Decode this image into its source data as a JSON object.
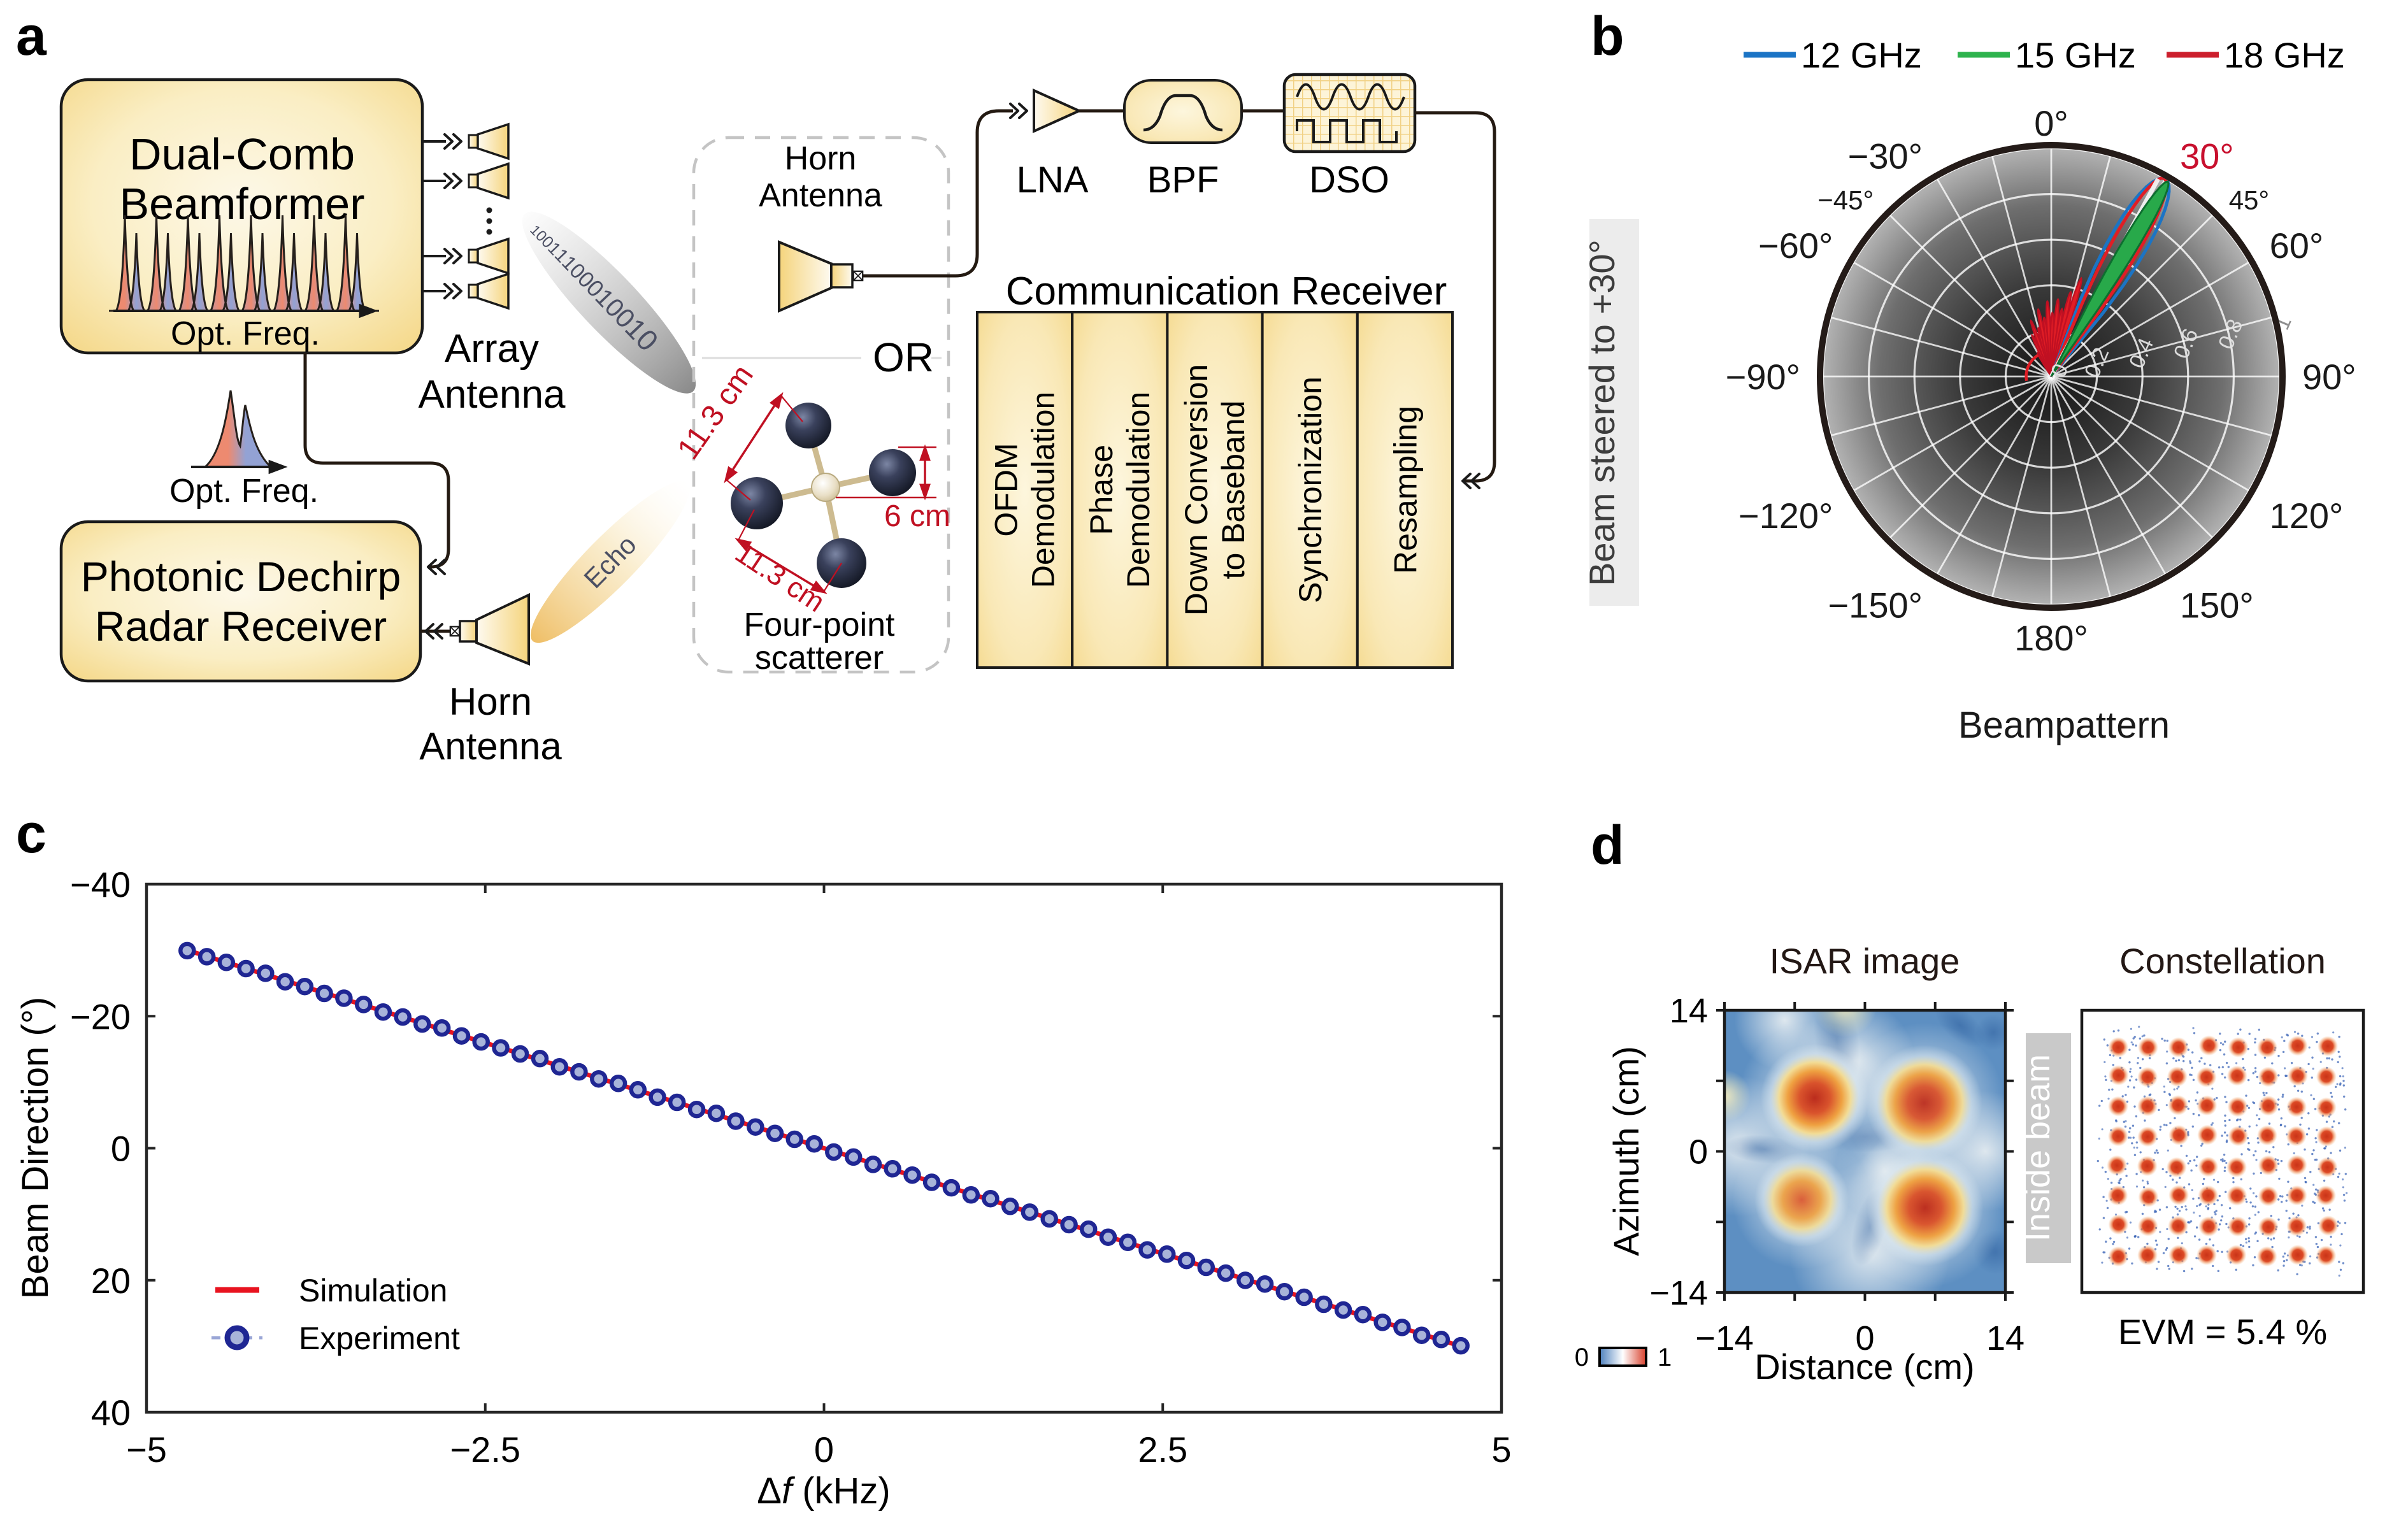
{
  "figure": {
    "panel_labels": {
      "a": "a",
      "b": "b",
      "c": "c",
      "d": "d"
    }
  },
  "panel_a": {
    "dual_comb_box": {
      "line1": "Dual-Comb",
      "line2": "Beamformer"
    },
    "comb_axis_label": "Opt. Freq.",
    "single_peak_axis_label": "Opt. Freq.",
    "photonic_box": {
      "line1": "Photonic Dechirp",
      "line2": "Radar Receiver"
    },
    "array_antenna": {
      "line1": "Array",
      "line2": "Antenna"
    },
    "horn_antenna_top": {
      "line1": "Horn",
      "line2": "Antenna"
    },
    "horn_antenna_bottom": {
      "line1": "Horn",
      "line2": "Antenna"
    },
    "bits": "10011100010010",
    "echo_label": "Echo",
    "or_label": "OR",
    "lna_label": "LNA",
    "bpf_label": "BPF",
    "dso_label": "DSO",
    "comm_title": "Communication Receiver",
    "comm_blocks": [
      {
        "lines": [
          "OFDM",
          "Demodulation"
        ]
      },
      {
        "lines": [
          "Phase",
          "Demodulation"
        ]
      },
      {
        "lines": [
          "Down Conversion",
          "to Baseband"
        ]
      },
      {
        "lines": [
          "Synchronization"
        ]
      },
      {
        "lines": [
          "Resampling"
        ]
      }
    ],
    "scatterer_caption": {
      "line1": "Four-point",
      "line2": "scatterer"
    },
    "dim_top": "11.3 cm",
    "dim_right": "6 cm",
    "dim_bottom": "11.3 cm"
  },
  "chart_data": [
    {
      "id": "beampattern",
      "type": "line",
      "projection": "polar",
      "title": "Beampattern",
      "steered_label": "Beam steered to +30°",
      "steer_deg": 30,
      "legend_position": "top",
      "legend": [
        {
          "label": "12 GHz",
          "color": "#1b74c5"
        },
        {
          "label": "15 GHz",
          "color": "#2eb34d"
        },
        {
          "label": "18 GHz",
          "color": "#cc1f2d"
        }
      ],
      "theta_labels": [
        {
          "deg": 0,
          "label": "0°",
          "size": "big"
        },
        {
          "deg": 30,
          "label": "30°",
          "size": "big",
          "color": "#c8102e"
        },
        {
          "deg": 45,
          "label": "45°",
          "size": "small"
        },
        {
          "deg": 60,
          "label": "60°",
          "size": "big"
        },
        {
          "deg": 90,
          "label": "90°",
          "size": "big"
        },
        {
          "deg": 120,
          "label": "120°",
          "size": "big"
        },
        {
          "deg": 150,
          "label": "150°",
          "size": "big"
        },
        {
          "deg": 180,
          "label": "180°",
          "size": "big"
        },
        {
          "deg": -150,
          "label": "−150°",
          "size": "big"
        },
        {
          "deg": -120,
          "label": "−120°",
          "size": "big"
        },
        {
          "deg": -90,
          "label": "−90°",
          "size": "big"
        },
        {
          "deg": -60,
          "label": "−60°",
          "size": "big"
        },
        {
          "deg": -45,
          "label": "−45°",
          "size": "small"
        },
        {
          "deg": -30,
          "label": "−30°",
          "size": "big"
        }
      ],
      "r_ticks": [
        {
          "r": 0.0,
          "label": "0"
        },
        {
          "r": 0.2,
          "label": "0.2"
        },
        {
          "r": 0.4,
          "label": "0.4"
        },
        {
          "r": 0.6,
          "label": "0.6"
        },
        {
          "r": 0.8,
          "label": "0.8"
        },
        {
          "r": 1.0,
          "label": "1"
        }
      ],
      "spoke_step_deg": 15,
      "main_lobes": [
        {
          "name": "12 GHz",
          "color": "#1b74c5",
          "dir": 30.0,
          "half_width": 10.0,
          "length": 1.0,
          "style": "outline"
        },
        {
          "name": "18 GHz",
          "color": "#e01d25",
          "dir": 29.7,
          "half_width": 7.4,
          "length": 1.0,
          "style": "outline"
        },
        {
          "name": "15 GHz",
          "color": "#28a94a",
          "edge": "#0d6e2f",
          "dir": 30.9,
          "half_width": 4.3,
          "length": 0.995,
          "style": "fill"
        }
      ],
      "white_ray_deg": 28.4,
      "sidelobes": {
        "red": [
          [
            -30,
            0.12
          ],
          [
            -25,
            0.2
          ],
          [
            -20,
            0.26
          ],
          [
            -15,
            0.22
          ],
          [
            -11,
            0.3
          ],
          [
            -7,
            0.26
          ],
          [
            -3,
            0.33
          ],
          [
            1,
            0.28
          ],
          [
            5,
            0.34
          ],
          [
            9,
            0.3
          ],
          [
            13,
            0.38
          ],
          [
            17,
            0.45
          ],
          [
            21,
            0.28
          ],
          [
            38,
            0.13
          ],
          [
            42,
            0.08
          ]
        ],
        "green": [
          [
            -8,
            0.14
          ],
          [
            0,
            0.16
          ],
          [
            8,
            0.13
          ],
          [
            20,
            0.1
          ],
          [
            36,
            0.09
          ]
        ],
        "blue": [
          [
            -14,
            0.15
          ],
          [
            -4,
            0.17
          ],
          [
            6,
            0.15
          ]
        ]
      },
      "red_arc": {
        "r": 0.11,
        "from_deg": -100,
        "to_deg": -32
      }
    },
    {
      "id": "beam-direction",
      "type": "scatter",
      "xlabel_sym": "Δ",
      "xlabel_var": "f",
      "xlabel_unit": " (kHz)",
      "ylabel": "Beam Direction (°)",
      "xlim": [
        -5,
        5
      ],
      "ylim": [
        -40,
        40
      ],
      "y_axis_reversed": true,
      "xticks": [
        {
          "v": -5,
          "label": "−5"
        },
        {
          "v": -2.5,
          "label": "−2.5"
        },
        {
          "v": 0,
          "label": "0"
        },
        {
          "v": 2.5,
          "label": "2.5"
        },
        {
          "v": 5,
          "label": "5"
        }
      ],
      "yticks": [
        {
          "v": -40,
          "label": "−40"
        },
        {
          "v": -20,
          "label": "−20"
        },
        {
          "v": 0,
          "label": "0"
        },
        {
          "v": 20,
          "label": "20"
        },
        {
          "v": 40,
          "label": "40"
        }
      ],
      "series": [
        {
          "name": "Simulation",
          "color": "#e8131f",
          "kind": "line",
          "slope_deg_per_khz": 6.383,
          "x_range": [
            -4.7,
            4.7
          ]
        },
        {
          "name": "Experiment",
          "kind": "marker",
          "marker_fill": "#a8b3d9",
          "marker_edge": "#1f2693",
          "dash_color": "#9aa6d6",
          "points": [
            [
              -4.7,
              -29.93
            ],
            [
              -4.555,
              -29.01
            ],
            [
              -4.411,
              -28.15
            ],
            [
              -4.266,
              -27.21
            ],
            [
              -4.122,
              -26.5
            ],
            [
              -3.977,
              -25.22
            ],
            [
              -3.832,
              -24.49
            ],
            [
              -3.688,
              -23.45
            ],
            [
              -3.543,
              -22.73
            ],
            [
              -3.398,
              -21.77
            ],
            [
              -3.254,
              -20.63
            ],
            [
              -3.109,
              -19.88
            ],
            [
              -2.965,
              -18.82
            ],
            [
              -2.82,
              -18.21
            ],
            [
              -2.675,
              -17.01
            ],
            [
              -2.531,
              -16.11
            ],
            [
              -2.386,
              -15.2
            ],
            [
              -2.242,
              -14.28
            ],
            [
              -2.097,
              -13.58
            ],
            [
              -1.952,
              -12.32
            ],
            [
              -1.808,
              -11.57
            ],
            [
              -1.663,
              -10.5
            ],
            [
              -1.518,
              -9.81
            ],
            [
              -1.374,
              -8.85
            ],
            [
              -1.229,
              -7.73
            ],
            [
              -1.085,
              -6.95
            ],
            [
              -0.94,
              -5.87
            ],
            [
              -0.795,
              -5.29
            ],
            [
              -0.651,
              -4.1
            ],
            [
              -0.506,
              -3.21
            ],
            [
              -0.362,
              -2.25
            ],
            [
              -0.217,
              -1.35
            ],
            [
              -0.072,
              -0.66
            ],
            [
              0.072,
              0.58
            ],
            [
              0.217,
              1.34
            ],
            [
              0.362,
              2.45
            ],
            [
              0.506,
              3.12
            ],
            [
              0.651,
              4.07
            ],
            [
              0.795,
              5.16
            ],
            [
              0.94,
              5.99
            ],
            [
              1.085,
              7.07
            ],
            [
              1.229,
              7.64
            ],
            [
              1.374,
              8.81
            ],
            [
              1.518,
              9.69
            ],
            [
              1.663,
              10.7
            ],
            [
              1.808,
              11.58
            ],
            [
              1.952,
              12.27
            ],
            [
              2.097,
              13.48
            ],
            [
              2.242,
              14.26
            ],
            [
              2.386,
              15.4
            ],
            [
              2.531,
              16.05
            ],
            [
              2.675,
              17.0
            ],
            [
              2.82,
              18.05
            ],
            [
              2.965,
              18.92
            ],
            [
              3.109,
              20.01
            ],
            [
              3.254,
              20.57
            ],
            [
              3.398,
              21.73
            ],
            [
              3.543,
              22.58
            ],
            [
              3.688,
              23.64
            ],
            [
              3.832,
              24.51
            ],
            [
              3.977,
              25.21
            ],
            [
              4.122,
              26.38
            ],
            [
              4.266,
              27.16
            ],
            [
              4.411,
              28.34
            ],
            [
              4.555,
              28.98
            ],
            [
              4.7,
              29.93
            ]
          ]
        }
      ]
    },
    {
      "id": "isar",
      "type": "heatmap",
      "title": "ISAR image",
      "xlabel": "Distance (cm)",
      "ylabel": "Azimuth (cm)",
      "xlim": [
        -14,
        14
      ],
      "ylim": [
        -14,
        14
      ],
      "xticks": [
        {
          "v": -14,
          "label": "−14"
        },
        {
          "v": -7,
          "label": ""
        },
        {
          "v": 0,
          "label": "0"
        },
        {
          "v": 7,
          "label": ""
        },
        {
          "v": 14,
          "label": "14"
        }
      ],
      "yticks": [
        {
          "v": 14,
          "label": "14"
        },
        {
          "v": 7,
          "label": ""
        },
        {
          "v": 0,
          "label": "0"
        },
        {
          "v": -7,
          "label": ""
        },
        {
          "v": -14,
          "label": "−14"
        }
      ],
      "colorbar": {
        "min_label": "0",
        "max_label": "1"
      },
      "inside_beam_label": "Inside beam",
      "blobs": [
        {
          "x": -5.0,
          "y": 5.3,
          "r_cm": 5.4,
          "strength": 1.0
        },
        {
          "x": 5.9,
          "y": 4.8,
          "r_cm": 5.8,
          "strength": 0.85
        },
        {
          "x": -6.3,
          "y": -4.8,
          "r_cm": 4.7,
          "strength": 0.75
        },
        {
          "x": 6.0,
          "y": -5.6,
          "r_cm": 5.8,
          "strength": 0.95
        }
      ]
    },
    {
      "id": "constellation",
      "type": "scatter",
      "title": "Constellation",
      "grid": 8,
      "evm_label": "EVM = 5.4 %",
      "dot_color": "#dd4a26",
      "dot_core_color": "#c93318",
      "noise_color": "#4068b8",
      "noise_seed": 42
    }
  ]
}
